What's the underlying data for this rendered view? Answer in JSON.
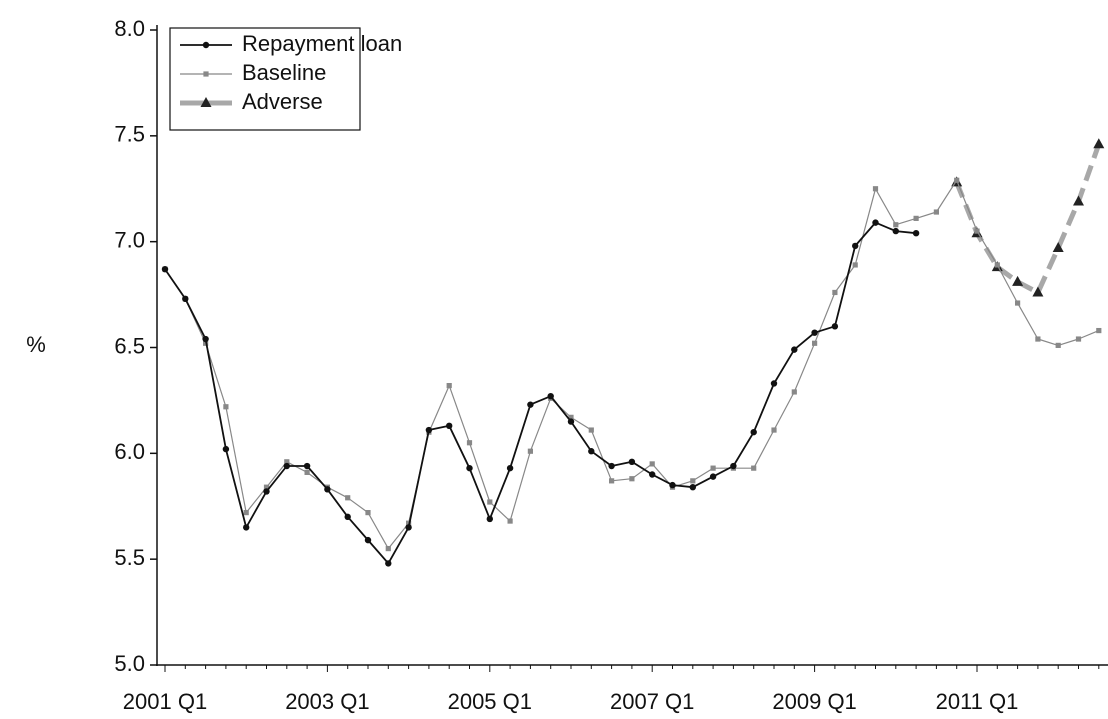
{
  "chart_data": {
    "type": "line",
    "y_label": "%",
    "categories": [
      "2001 Q1",
      null,
      null,
      null,
      null,
      null,
      null,
      null,
      "2003 Q1",
      null,
      null,
      null,
      null,
      null,
      null,
      null,
      "2005 Q1",
      null,
      null,
      null,
      null,
      null,
      null,
      null,
      "2007 Q1",
      null,
      null,
      null,
      null,
      null,
      null,
      null,
      "2009 Q1",
      null,
      null,
      null,
      null,
      null,
      null,
      null,
      "2011 Q1",
      null,
      null,
      null,
      null,
      null,
      null
    ],
    "ylim": [
      5,
      8
    ],
    "yticks": [
      {
        "value": 5,
        "label": "5.0"
      },
      {
        "value": 5.5,
        "label": "5.5"
      },
      {
        "value": 6,
        "label": "6.0"
      },
      {
        "value": 6.5,
        "label": "6.5"
      },
      {
        "value": 7,
        "label": "7.0"
      },
      {
        "value": 7.5,
        "label": "7.5"
      },
      {
        "value": 8,
        "label": "8.0"
      }
    ],
    "legend": "upper left",
    "series": [
      {
        "name": "Repayment loan",
        "color": "#111111",
        "marker": "circle",
        "line_style": "solid",
        "values": [
          6.87,
          6.73,
          6.54,
          6.02,
          5.65,
          5.82,
          5.94,
          5.94,
          5.83,
          5.7,
          5.59,
          5.48,
          5.65,
          6.11,
          6.13,
          5.93,
          5.69,
          5.93,
          6.23,
          6.27,
          6.15,
          6.01,
          5.94,
          5.96,
          5.9,
          5.85,
          5.84,
          5.89,
          5.94,
          6.1,
          6.33,
          6.49,
          6.57,
          6.6,
          6.98,
          7.09,
          7.05,
          7.04,
          null,
          null,
          null,
          null,
          null,
          null,
          null,
          null,
          null
        ]
      },
      {
        "name": "Baseline",
        "color": "#888888",
        "marker": "square",
        "line_style": "solid",
        "values": [
          6.87,
          6.73,
          6.52,
          6.22,
          5.72,
          5.84,
          5.96,
          5.91,
          5.84,
          5.79,
          5.72,
          5.55,
          5.67,
          6.1,
          6.32,
          6.05,
          5.77,
          5.68,
          6.01,
          6.26,
          6.17,
          6.11,
          5.87,
          5.88,
          5.95,
          5.84,
          5.87,
          5.93,
          5.93,
          5.93,
          6.11,
          6.29,
          6.52,
          6.76,
          6.89,
          7.25,
          7.08,
          7.11,
          7.14,
          7.29,
          7.05,
          6.89,
          6.71,
          6.54,
          6.51,
          6.54,
          6.58
        ]
      },
      {
        "name": "Adverse",
        "color": "#a8a8a8",
        "marker": "triangle",
        "line_style": "dashed",
        "values": [
          null,
          null,
          null,
          null,
          null,
          null,
          null,
          null,
          null,
          null,
          null,
          null,
          null,
          null,
          null,
          null,
          null,
          null,
          null,
          null,
          null,
          null,
          null,
          null,
          null,
          null,
          null,
          null,
          null,
          null,
          null,
          null,
          null,
          null,
          null,
          null,
          null,
          null,
          null,
          7.28,
          7.04,
          6.88,
          6.81,
          6.76,
          6.97,
          7.19,
          7.46
        ]
      }
    ]
  }
}
